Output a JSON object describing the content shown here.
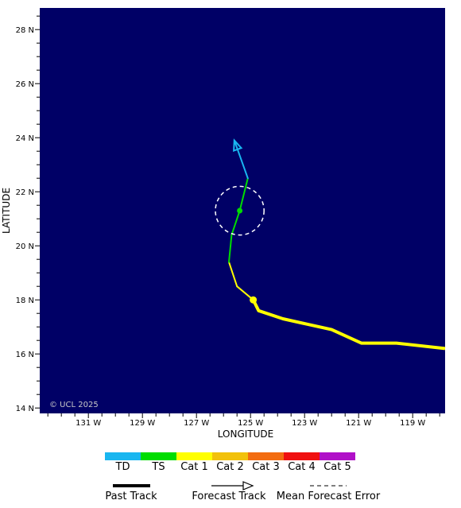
{
  "map": {
    "background_color": "#000066",
    "xlabel": "LONGITUDE",
    "ylabel": "LATITUDE",
    "copyright": "© UCL 2025",
    "lon_ticks": [
      {
        "value": -131,
        "label": "131 W"
      },
      {
        "value": -129,
        "label": "129 W"
      },
      {
        "value": -127,
        "label": "127 W"
      },
      {
        "value": -125,
        "label": "125 W"
      },
      {
        "value": -123,
        "label": "123 W"
      },
      {
        "value": -121,
        "label": "121 W"
      },
      {
        "value": -119,
        "label": "119 W"
      }
    ],
    "lat_ticks": [
      {
        "value": 14,
        "label": "14 N"
      },
      {
        "value": 16,
        "label": "16 N"
      },
      {
        "value": 18,
        "label": "18 N"
      },
      {
        "value": 20,
        "label": "20 N"
      },
      {
        "value": 22,
        "label": "22 N"
      },
      {
        "value": 24,
        "label": "24 N"
      },
      {
        "value": 26,
        "label": "26 N"
      },
      {
        "value": 28,
        "label": "28 N"
      }
    ],
    "lon_range": [
      -132.8,
      -117.8
    ],
    "lat_range": [
      13.8,
      28.8
    ]
  },
  "chart_data": {
    "type": "map-track",
    "past_track": {
      "color": "#ffff00",
      "points": [
        {
          "lon": -117.8,
          "lat": 16.2
        },
        {
          "lon": -119.6,
          "lat": 16.4
        },
        {
          "lon": -120.9,
          "lat": 16.4
        },
        {
          "lon": -122.0,
          "lat": 16.9
        },
        {
          "lon": -122.9,
          "lat": 17.1
        },
        {
          "lon": -123.8,
          "lat": 17.3
        },
        {
          "lon": -124.7,
          "lat": 17.6
        },
        {
          "lon": -124.9,
          "lat": 18.0
        }
      ]
    },
    "current_position": {
      "lon": -124.9,
      "lat": 18.0,
      "color": "#ffff00"
    },
    "forecast_track": [
      {
        "from": {
          "lon": -124.9,
          "lat": 18.0
        },
        "to": {
          "lon": -125.5,
          "lat": 18.5
        },
        "color": "#ffff00"
      },
      {
        "from": {
          "lon": -125.5,
          "lat": 18.5
        },
        "to": {
          "lon": -125.8,
          "lat": 19.4
        },
        "color": "#ffff00"
      },
      {
        "from": {
          "lon": -125.8,
          "lat": 19.4
        },
        "to": {
          "lon": -125.7,
          "lat": 20.4
        },
        "color": "#00dd00"
      },
      {
        "from": {
          "lon": -125.7,
          "lat": 20.4
        },
        "to": {
          "lon": -125.4,
          "lat": 21.3
        },
        "color": "#00dd00"
      },
      {
        "from": {
          "lon": -125.4,
          "lat": 21.3
        },
        "to": {
          "lon": -125.1,
          "lat": 22.5
        },
        "color": "#00dd00"
      },
      {
        "from": {
          "lon": -125.1,
          "lat": 22.5
        },
        "to": {
          "lon": -125.6,
          "lat": 23.9
        },
        "color": "#19b6f0"
      }
    ],
    "forecast_point": {
      "lon": -125.4,
      "lat": 21.3,
      "color": "#00dd00"
    },
    "mean_error_circle": {
      "lon": -125.4,
      "lat": 21.3,
      "radius_deg": 0.9
    }
  },
  "legend": {
    "categories": [
      {
        "label": "TD",
        "color": "#19b6f0"
      },
      {
        "label": "TS",
        "color": "#00dd00"
      },
      {
        "label": "Cat 1",
        "color": "#ffff00"
      },
      {
        "label": "Cat 2",
        "color": "#f2c10b"
      },
      {
        "label": "Cat 3",
        "color": "#f36c10"
      },
      {
        "label": "Cat 4",
        "color": "#f01010"
      },
      {
        "label": "Cat 5",
        "color": "#b010c8"
      }
    ],
    "past_track_label": "Past Track",
    "forecast_track_label": "Forecast Track",
    "mean_error_label": "Mean Forecast Error"
  }
}
